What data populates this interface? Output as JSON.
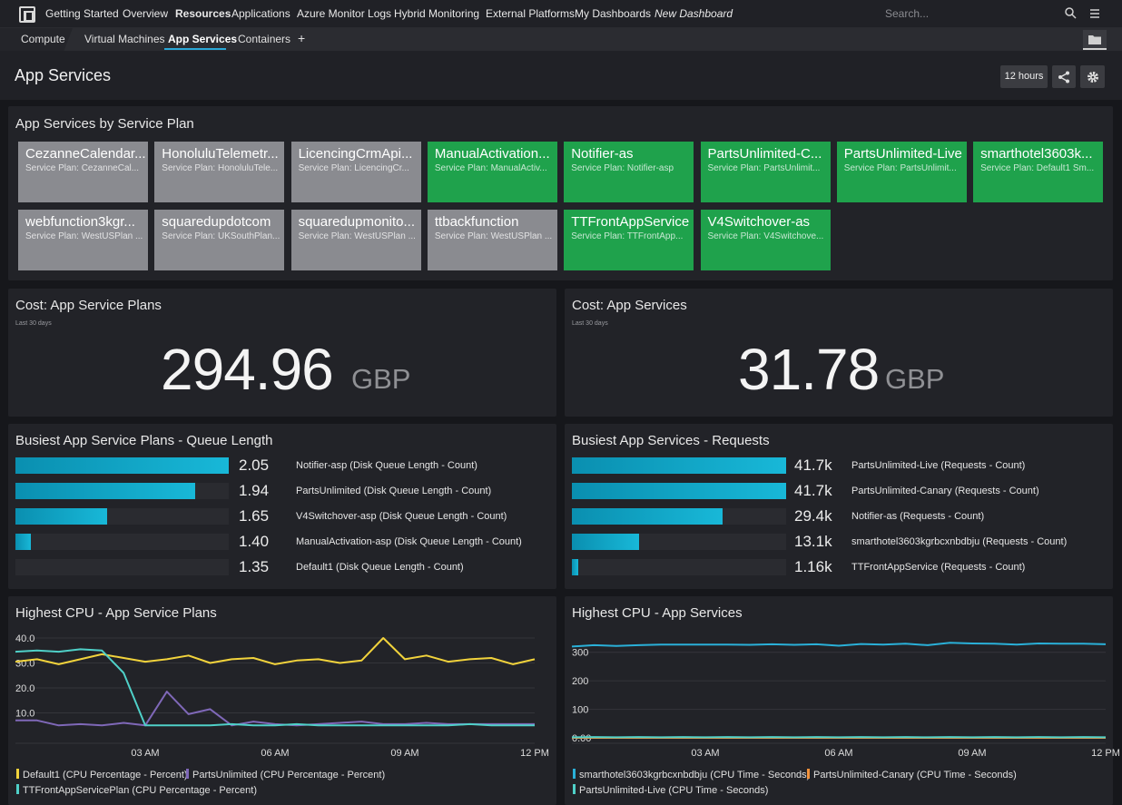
{
  "nav": {
    "items": [
      "Getting Started",
      "Overview",
      "Resources",
      "Applications",
      "Azure Monitor Logs",
      "Hybrid Monitoring",
      "External Platforms",
      "My Dashboards",
      "New Dashboard"
    ],
    "search_placeholder": "Search..."
  },
  "subnav": {
    "items": [
      "Compute",
      "Virtual Machines",
      "App Services",
      "Containers",
      "+"
    ],
    "active": "App Services"
  },
  "page": {
    "title": "App Services",
    "time_range": "12 hours"
  },
  "service_plans": {
    "title": "App Services by Service Plan",
    "tiles": [
      {
        "name": "CezanneCalendar...",
        "plan": "Service Plan: CezanneCal...",
        "status": "grey"
      },
      {
        "name": "HonoluluTelemetr...",
        "plan": "Service Plan: HonoluluTele...",
        "status": "grey"
      },
      {
        "name": "LicencingCrmApi...",
        "plan": "Service Plan: LicencingCr...",
        "status": "grey"
      },
      {
        "name": "ManualActivation...",
        "plan": "Service Plan: ManualActiv...",
        "status": "green"
      },
      {
        "name": "Notifier-as",
        "plan": "Service Plan: Notifier-asp",
        "status": "green"
      },
      {
        "name": "PartsUnlimited-C...",
        "plan": "Service Plan: PartsUnlimit...",
        "status": "green"
      },
      {
        "name": "PartsUnlimited-Live",
        "plan": "Service Plan: PartsUnlimit...",
        "status": "green"
      },
      {
        "name": "smarthotel3603k...",
        "plan": "Service Plan: Default1 Sm...",
        "status": "green"
      },
      {
        "name": "webfunction3kgr...",
        "plan": "Service Plan: WestUSPlan ...",
        "status": "grey"
      },
      {
        "name": "squaredupdotcom",
        "plan": "Service Plan: UKSouthPlan...",
        "status": "grey"
      },
      {
        "name": "squaredupmonito...",
        "plan": "Service Plan: WestUSPlan ...",
        "status": "grey"
      },
      {
        "name": "ttbackfunction",
        "plan": "Service Plan: WestUSPlan ...",
        "status": "grey"
      },
      {
        "name": "TTFrontAppService",
        "plan": "Service Plan: TTFrontApp...",
        "status": "green"
      },
      {
        "name": "V4Switchover-as",
        "plan": "Service Plan: V4Switchove...",
        "status": "green"
      }
    ]
  },
  "cost_plans": {
    "title": "Cost: App Service Plans",
    "subtitle": "Last 30 days",
    "value": "294.96",
    "unit": "GBP"
  },
  "cost_services": {
    "title": "Cost: App Services",
    "subtitle": "Last 30 days",
    "value": "31.78",
    "unit": "GBP"
  },
  "queue_length": {
    "title": "Busiest App Service Plans - Queue Length",
    "rows": [
      {
        "value": "2.05",
        "num": 2.05,
        "label": "Notifier-asp (Disk Queue Length - Count)"
      },
      {
        "value": "1.94",
        "num": 1.94,
        "label": "PartsUnlimited (Disk Queue Length - Count)"
      },
      {
        "value": "1.65",
        "num": 1.65,
        "label": "V4Switchover-asp (Disk Queue Length - Count)"
      },
      {
        "value": "1.40",
        "num": 1.4,
        "label": "ManualActivation-asp (Disk Queue Length - Count)"
      },
      {
        "value": "1.35",
        "num": 1.35,
        "label": "Default1 (Disk Queue Length - Count)"
      }
    ]
  },
  "requests": {
    "title": "Busiest App Services - Requests",
    "rows": [
      {
        "value": "41.7k",
        "num": 41700,
        "label": "PartsUnlimited-Live (Requests - Count)"
      },
      {
        "value": "41.7k",
        "num": 41700,
        "label": "PartsUnlimited-Canary (Requests - Count)"
      },
      {
        "value": "29.4k",
        "num": 29400,
        "label": "Notifier-as (Requests - Count)"
      },
      {
        "value": "13.1k",
        "num": 13100,
        "label": "smarthotel3603kgrbcxnbdbju (Requests - Count)"
      },
      {
        "value": "1.16k",
        "num": 1160,
        "label": "TTFrontAppService (Requests - Count)"
      }
    ]
  },
  "chart_data": [
    {
      "type": "line",
      "title": "Highest CPU - App Service Plans",
      "ylim": [
        0,
        40
      ],
      "yticks": [
        "40.0",
        "30.0",
        "20.0",
        "10.0"
      ],
      "xticks": [
        "03 AM",
        "06 AM",
        "09 AM",
        "12 PM"
      ],
      "x": [
        "00:00",
        "00:30",
        "01:00",
        "01:30",
        "02:00",
        "02:30",
        "03:00",
        "03:30",
        "04:00",
        "04:30",
        "05:00",
        "05:30",
        "06:00",
        "06:30",
        "07:00",
        "07:30",
        "08:00",
        "08:30",
        "09:00",
        "09:30",
        "10:00",
        "10:30",
        "11:00",
        "11:30",
        "12:00"
      ],
      "series": [
        {
          "name": "Default1 (CPU Percentage - Percent)",
          "color": "#f2d33c",
          "values": [
            30.5,
            31.5,
            29.5,
            31.5,
            33.5,
            32,
            30.5,
            31.5,
            33,
            30,
            31.5,
            32,
            29.5,
            31,
            31.5,
            30,
            31,
            40,
            31.5,
            33,
            30.5,
            31.5,
            32,
            29.5,
            31.5
          ]
        },
        {
          "name": "PartsUnlimited (CPU Percentage - Percent)",
          "color": "#7f68b8",
          "values": [
            7,
            7,
            5,
            5.5,
            5,
            6,
            5,
            18.5,
            9.5,
            11.5,
            5,
            6.5,
            5.5,
            5,
            5.5,
            6,
            6.5,
            5.5,
            5.5,
            6,
            5.5,
            5.5,
            5.5,
            5.5,
            5.5
          ]
        },
        {
          "name": "TTFrontAppServicePlan (CPU Percentage - Percent)",
          "color": "#4fd0c8",
          "values": [
            34.5,
            35,
            34.5,
            35.5,
            35,
            26,
            5,
            5,
            5,
            5,
            5.5,
            5,
            5,
            5.5,
            5,
            5,
            5,
            5,
            5,
            5,
            5,
            5.5,
            5,
            5,
            5
          ]
        }
      ]
    },
    {
      "type": "line",
      "title": "Highest CPU - App Services",
      "ylim": [
        0,
        350
      ],
      "yticks": [
        "300",
        "200",
        "100",
        "0.00"
      ],
      "xticks": [
        "03 AM",
        "06 AM",
        "09 AM",
        "12 PM"
      ],
      "x": [
        "00:00",
        "00:30",
        "01:00",
        "01:30",
        "02:00",
        "02:30",
        "03:00",
        "03:30",
        "04:00",
        "04:30",
        "05:00",
        "05:30",
        "06:00",
        "06:30",
        "07:00",
        "07:30",
        "08:00",
        "08:30",
        "09:00",
        "09:30",
        "10:00",
        "10:30",
        "11:00",
        "11:30",
        "12:00"
      ],
      "series": [
        {
          "name": "smarthotel3603kgrbcxnbdbju (CPU Time - Seconds)",
          "color": "#2ab0d8",
          "values": [
            320,
            325,
            322,
            325,
            327,
            327,
            327,
            327,
            326,
            328,
            326,
            328,
            323,
            329,
            327,
            330,
            325,
            333,
            331,
            330,
            327,
            331,
            330,
            330,
            328
          ]
        },
        {
          "name": "PartsUnlimited-Canary (CPU Time - Seconds)",
          "color": "#f2923c",
          "values": [
            0,
            0,
            0,
            0,
            0,
            0,
            0,
            0,
            0,
            0,
            0,
            0,
            0,
            0,
            0,
            0,
            0,
            0,
            0,
            0,
            0,
            0,
            0,
            0,
            0
          ]
        },
        {
          "name": "PartsUnlimited-Live (CPU Time - Seconds)",
          "color": "#4fd0c8",
          "values": [
            2,
            3,
            2,
            3,
            2,
            3,
            2,
            3,
            2,
            3,
            2,
            3,
            2,
            3,
            2,
            3,
            2,
            3,
            2,
            3,
            2,
            3,
            2,
            3,
            2
          ]
        }
      ]
    }
  ]
}
